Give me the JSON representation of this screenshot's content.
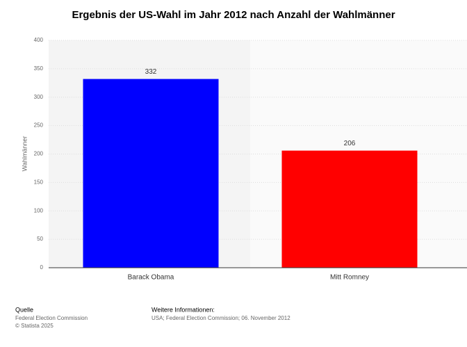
{
  "chart_data": {
    "type": "bar",
    "title": "Ergebnis der US-Wahl im Jahr 2012 nach Anzahl der Wahlmänner",
    "y_label": "Wahlmänner",
    "categories": [
      "Barack Obama",
      "Mitt Romney"
    ],
    "values": [
      332,
      206
    ],
    "colors": [
      "#0000ff",
      "#ff0000"
    ],
    "ylim": [
      0,
      400
    ],
    "yticks": [
      0,
      50,
      100,
      150,
      200,
      250,
      300,
      350,
      400
    ],
    "grid": true
  },
  "footer": {
    "source_title": "Quelle",
    "source": "Federal Election Commission",
    "copyright": "© Statista 2025",
    "info_title": "Weitere Informationen:",
    "info": "USA; Federal Election Commission; 06. November 2012"
  }
}
